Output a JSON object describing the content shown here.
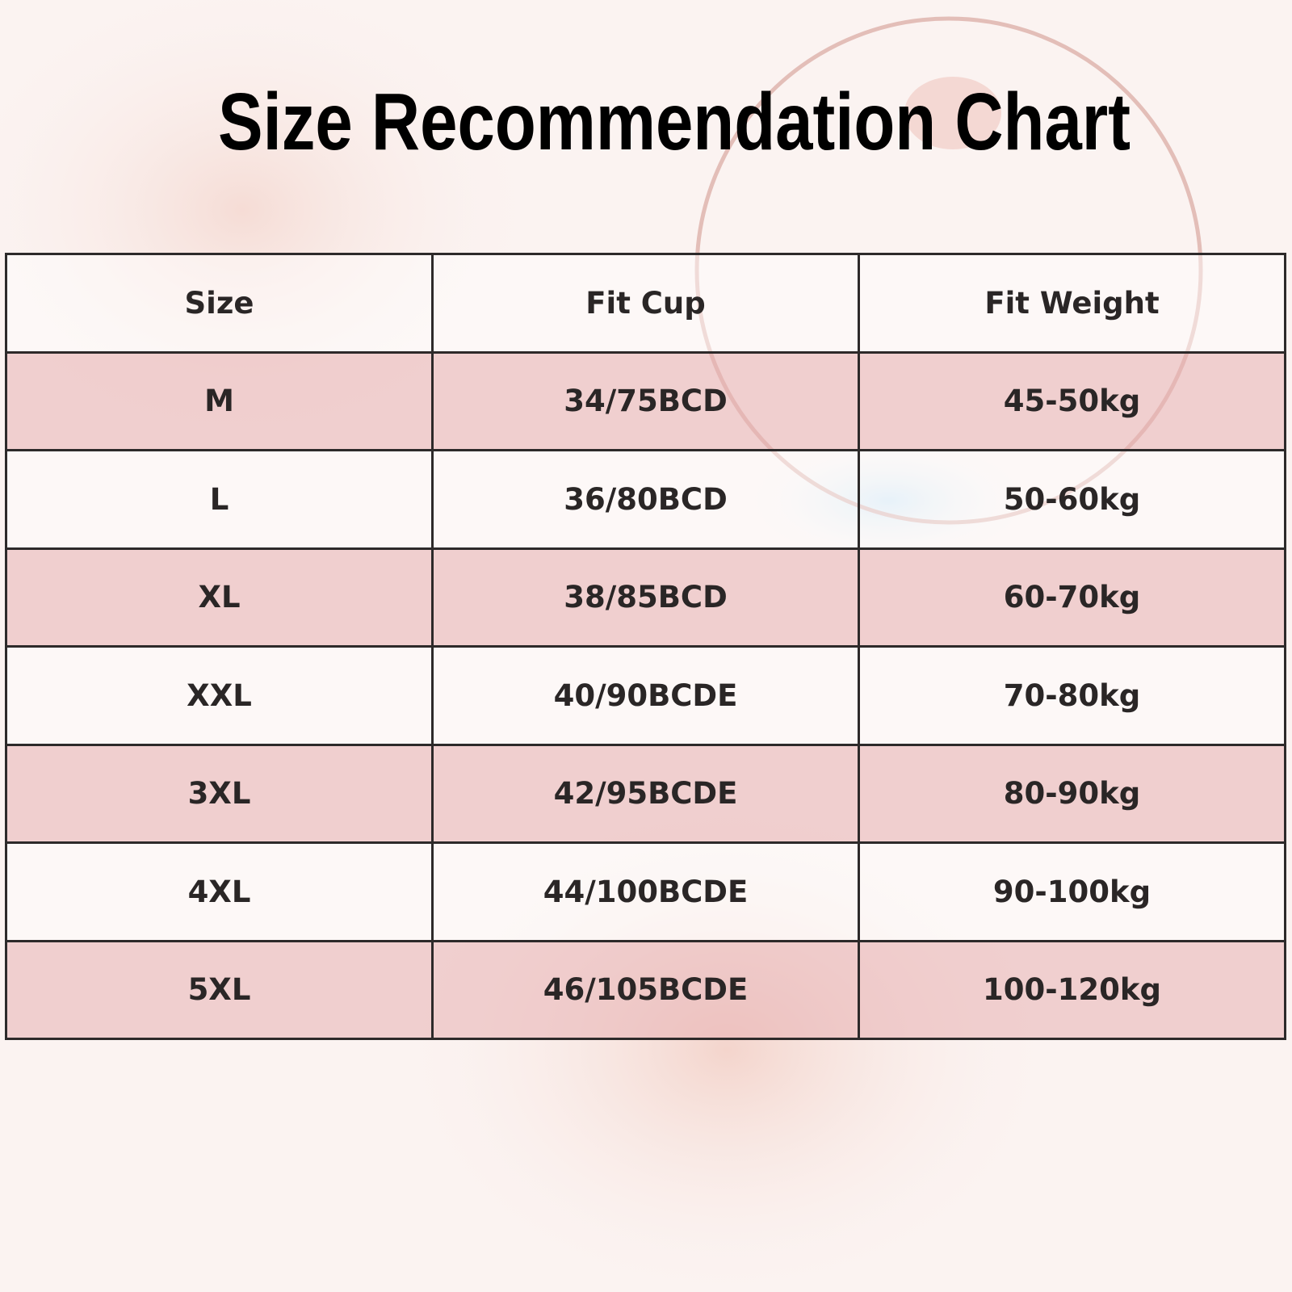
{
  "header": {
    "title": "Size Recommendation Chart"
  },
  "table": {
    "columns": [
      "Size",
      "Fit Cup",
      "Fit Weight"
    ],
    "rows": [
      [
        "M",
        "34/75BCD",
        "45-50kg"
      ],
      [
        "L",
        "36/80BCD",
        "50-60kg"
      ],
      [
        "XL",
        "38/85BCD",
        "60-70kg"
      ],
      [
        "XXL",
        "40/90BCDE",
        "70-80kg"
      ],
      [
        "3XL",
        "42/95BCDE",
        "80-90kg"
      ],
      [
        "4XL",
        "44/100BCDE",
        "90-100kg"
      ],
      [
        "5XL",
        "46/105BCDE",
        "100-120kg"
      ]
    ]
  }
}
